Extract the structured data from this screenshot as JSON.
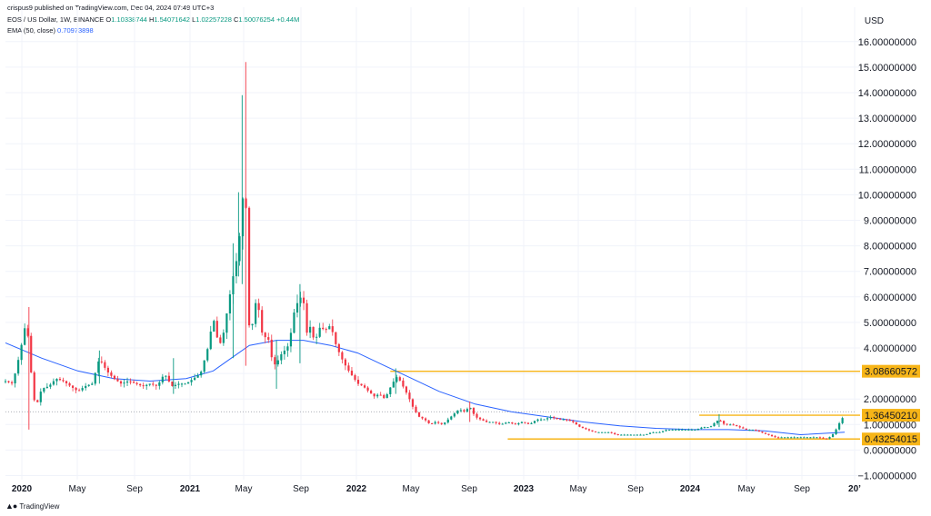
{
  "header": {
    "publisher": "crispus9 published on TradingView.com, Dec 04, 2024 07:49 UTC+3",
    "symbol": "EOS / US Dollar, 1W, BINANCE",
    "o_label": "O",
    "o_value": "1.10338744",
    "h_label": "H",
    "h_value": "1.54071642",
    "l_label": "L",
    "l_value": "1.02257228",
    "c_label": "C",
    "c_value": "1.50076254",
    "change": "+0.44M",
    "ema_label": "EMA (50, close)",
    "ema_value": "0.70973898"
  },
  "currency": "USD",
  "footer": {
    "brand": "TradingView"
  },
  "colors": {
    "up": "#089981",
    "down": "#f23645",
    "ema": "#2962ff",
    "level": "#f7b518",
    "grid": "#f0f3fa"
  },
  "chart_data": {
    "type": "candlestick",
    "title": "EOS / US Dollar, 1W, BINANCE",
    "ylabel": "USD",
    "ylim": [
      -1.5,
      16.8
    ],
    "y_ticks": [
      "16.00000000",
      "15.00000000",
      "14.00000000",
      "13.00000000",
      "12.00000000",
      "11.00000000",
      "10.00000000",
      "9.00000000",
      "8.00000000",
      "7.00000000",
      "6.00000000",
      "5.00000000",
      "4.00000000",
      "3.00000000",
      "2.00000000",
      "1.00000000",
      "0.00000000",
      "−1.00000000"
    ],
    "x_ticks": [
      {
        "label": "2020",
        "bold": true
      },
      {
        "label": "May",
        "bold": false
      },
      {
        "label": "Sep",
        "bold": false
      },
      {
        "label": "2021",
        "bold": true
      },
      {
        "label": "May",
        "bold": false
      },
      {
        "label": "Sep",
        "bold": false
      },
      {
        "label": "2022",
        "bold": true
      },
      {
        "label": "May",
        "bold": false
      },
      {
        "label": "Sep",
        "bold": false
      },
      {
        "label": "2023",
        "bold": true
      },
      {
        "label": "May",
        "bold": false
      },
      {
        "label": "Sep",
        "bold": false
      },
      {
        "label": "2024",
        "bold": true
      },
      {
        "label": "May",
        "bold": false
      },
      {
        "label": "Sep",
        "bold": false
      },
      {
        "label": "20’",
        "bold": true
      }
    ],
    "price_path": [
      [
        0,
        2.7
      ],
      [
        8,
        2.6
      ],
      [
        16,
        3.8
      ],
      [
        22,
        4.9
      ],
      [
        26,
        4.3
      ],
      [
        30,
        2.2
      ],
      [
        34,
        1.7
      ],
      [
        40,
        2.4
      ],
      [
        48,
        2.5
      ],
      [
        56,
        2.8
      ],
      [
        64,
        2.7
      ],
      [
        72,
        2.5
      ],
      [
        80,
        2.3
      ],
      [
        88,
        2.5
      ],
      [
        96,
        2.6
      ],
      [
        104,
        3.6
      ],
      [
        112,
        3.1
      ],
      [
        120,
        2.8
      ],
      [
        128,
        2.6
      ],
      [
        136,
        2.7
      ],
      [
        144,
        2.6
      ],
      [
        152,
        2.5
      ],
      [
        160,
        2.6
      ],
      [
        168,
        2.5
      ],
      [
        176,
        3.0
      ],
      [
        184,
        2.5
      ],
      [
        192,
        2.6
      ],
      [
        200,
        2.6
      ],
      [
        208,
        2.8
      ],
      [
        216,
        3.0
      ],
      [
        224,
        4.0
      ],
      [
        230,
        5.2
      ],
      [
        236,
        4.1
      ],
      [
        240,
        4.3
      ],
      [
        248,
        6.0
      ],
      [
        252,
        6.8
      ],
      [
        258,
        7.8
      ],
      [
        262,
        9.8
      ],
      [
        266,
        10.1
      ],
      [
        268,
        5.2
      ],
      [
        272,
        4.5
      ],
      [
        276,
        5.8
      ],
      [
        280,
        5.6
      ],
      [
        284,
        4.6
      ],
      [
        288,
        4.4
      ],
      [
        292,
        4.3
      ],
      [
        296,
        3.3
      ],
      [
        300,
        3.4
      ],
      [
        306,
        3.8
      ],
      [
        312,
        4.0
      ],
      [
        316,
        4.6
      ],
      [
        320,
        5.5
      ],
      [
        326,
        6.0
      ],
      [
        330,
        5.8
      ],
      [
        334,
        4.5
      ],
      [
        338,
        4.9
      ],
      [
        342,
        4.2
      ],
      [
        348,
        4.8
      ],
      [
        354,
        4.7
      ],
      [
        360,
        4.9
      ],
      [
        366,
        4.1
      ],
      [
        372,
        3.6
      ],
      [
        378,
        3.2
      ],
      [
        384,
        2.9
      ],
      [
        390,
        2.6
      ],
      [
        396,
        2.5
      ],
      [
        402,
        2.3
      ],
      [
        408,
        2.1
      ],
      [
        414,
        2.2
      ],
      [
        420,
        2.0
      ],
      [
        428,
        2.6
      ],
      [
        434,
        2.9
      ],
      [
        440,
        2.5
      ],
      [
        446,
        2.1
      ],
      [
        452,
        1.6
      ],
      [
        458,
        1.3
      ],
      [
        464,
        1.2
      ],
      [
        470,
        1.0
      ],
      [
        476,
        1.1
      ],
      [
        484,
        1.0
      ],
      [
        490,
        1.2
      ],
      [
        496,
        1.4
      ],
      [
        502,
        1.6
      ],
      [
        508,
        1.5
      ],
      [
        514,
        1.7
      ],
      [
        520,
        1.3
      ],
      [
        526,
        1.2
      ],
      [
        532,
        1.1
      ],
      [
        540,
        1.1
      ],
      [
        548,
        1.0
      ],
      [
        556,
        1.1
      ],
      [
        564,
        1.0
      ],
      [
        572,
        1.1
      ],
      [
        580,
        1.0
      ],
      [
        588,
        1.2
      ],
      [
        596,
        1.2
      ],
      [
        604,
        1.3
      ],
      [
        612,
        1.2
      ],
      [
        620,
        1.2
      ],
      [
        628,
        1.1
      ],
      [
        636,
        0.9
      ],
      [
        644,
        0.8
      ],
      [
        652,
        0.7
      ],
      [
        660,
        0.7
      ],
      [
        668,
        0.7
      ],
      [
        676,
        0.6
      ],
      [
        684,
        0.6
      ],
      [
        692,
        0.6
      ],
      [
        700,
        0.6
      ],
      [
        708,
        0.6
      ],
      [
        716,
        0.7
      ],
      [
        724,
        0.7
      ],
      [
        732,
        0.8
      ],
      [
        740,
        0.8
      ],
      [
        748,
        0.8
      ],
      [
        756,
        0.8
      ],
      [
        764,
        0.8
      ],
      [
        772,
        0.9
      ],
      [
        780,
        0.9
      ],
      [
        786,
        1.1
      ],
      [
        790,
        1.2
      ],
      [
        796,
        1.0
      ],
      [
        804,
        1.0
      ],
      [
        812,
        0.9
      ],
      [
        820,
        0.8
      ],
      [
        828,
        0.8
      ],
      [
        836,
        0.7
      ],
      [
        844,
        0.6
      ],
      [
        852,
        0.5
      ],
      [
        860,
        0.5
      ],
      [
        868,
        0.5
      ],
      [
        876,
        0.5
      ],
      [
        884,
        0.5
      ],
      [
        892,
        0.5
      ],
      [
        900,
        0.5
      ],
      [
        906,
        0.45
      ],
      [
        910,
        0.45
      ],
      [
        914,
        0.55
      ],
      [
        918,
        0.7
      ],
      [
        922,
        1.0
      ],
      [
        926,
        1.2
      ],
      [
        929,
        1.5
      ]
    ],
    "wicks": [
      [
        26,
        5.6,
        0.8
      ],
      [
        266,
        15.2,
        3.3
      ],
      [
        262,
        13.9,
        6.5
      ],
      [
        258,
        10.1,
        6.8
      ],
      [
        252,
        8.1,
        3.6
      ],
      [
        326,
        6.5,
        3.4
      ],
      [
        300,
        4.3,
        2.4
      ],
      [
        186,
        3.6,
        2.2
      ],
      [
        104,
        3.9,
        2.6
      ],
      [
        432,
        3.2,
        2.2
      ],
      [
        514,
        1.9,
        1.1
      ],
      [
        790,
        1.4,
        0.9
      ]
    ],
    "ema": [
      [
        0,
        4.2
      ],
      [
        40,
        3.6
      ],
      [
        80,
        3.1
      ],
      [
        120,
        2.8
      ],
      [
        160,
        2.7
      ],
      [
        200,
        2.8
      ],
      [
        230,
        3.1
      ],
      [
        250,
        3.6
      ],
      [
        270,
        4.1
      ],
      [
        300,
        4.3
      ],
      [
        330,
        4.3
      ],
      [
        360,
        4.1
      ],
      [
        390,
        3.8
      ],
      [
        420,
        3.3
      ],
      [
        450,
        2.8
      ],
      [
        480,
        2.3
      ],
      [
        520,
        1.8
      ],
      [
        560,
        1.5
      ],
      [
        600,
        1.3
      ],
      [
        640,
        1.1
      ],
      [
        680,
        0.95
      ],
      [
        720,
        0.85
      ],
      [
        760,
        0.8
      ],
      [
        800,
        0.8
      ],
      [
        840,
        0.75
      ],
      [
        880,
        0.6
      ],
      [
        929,
        0.7
      ]
    ],
    "levels": [
      {
        "value": 3.0866,
        "label": "3.08660572",
        "from_x": 426
      },
      {
        "value": 1.3645,
        "label": "1.36450210",
        "from_x": 768
      },
      {
        "value": 0.43254,
        "label": "0.43254015",
        "from_x": 556
      }
    ],
    "current_price": 1.50076254
  }
}
